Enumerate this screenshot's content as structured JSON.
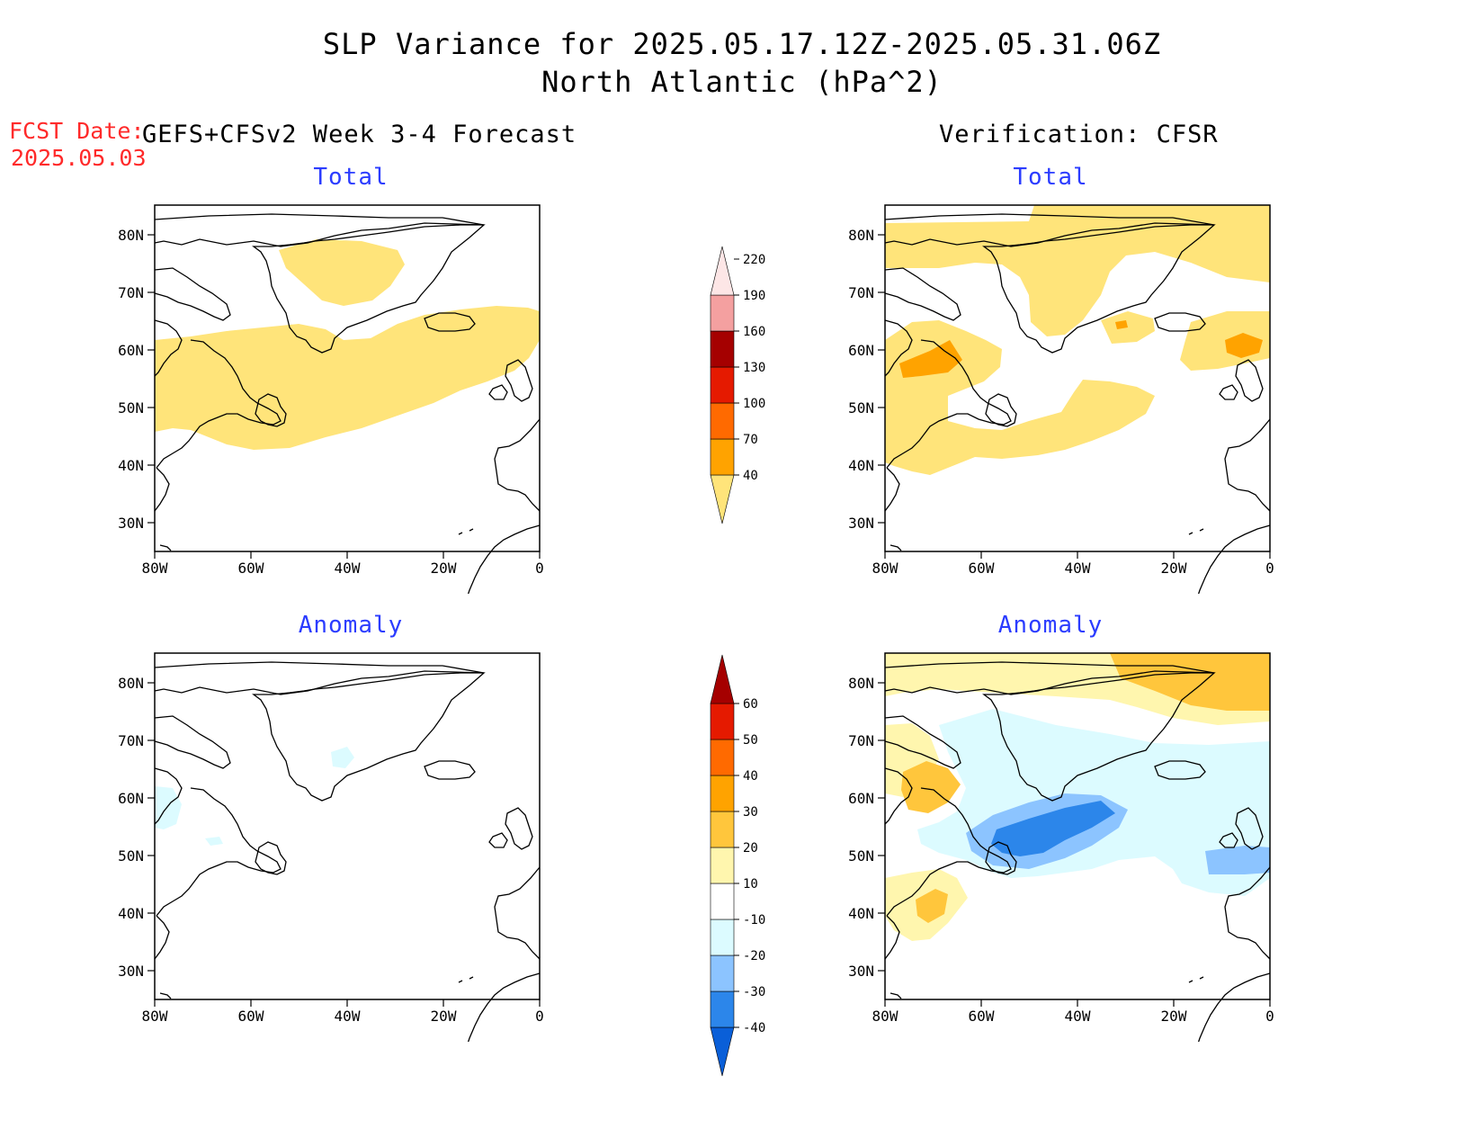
{
  "title": {
    "line1": "SLP Variance for 2025.05.17.12Z-2025.05.31.06Z",
    "line2": "North Atlantic (hPa^2)"
  },
  "fcst": {
    "label": "FCST Date:",
    "date": "2025.05.03"
  },
  "headers": {
    "left": "GEFS+CFSv2 Week 3-4 Forecast",
    "right": "Verification: CFSR"
  },
  "panels": {
    "fc_total": "Total",
    "ver_total": "Total",
    "fc_anom": "Anomaly",
    "ver_anom": "Anomaly"
  },
  "axes": {
    "lat_labels": [
      "80N",
      "70N",
      "60N",
      "50N",
      "40N",
      "30N"
    ],
    "lon_labels": [
      "80W",
      "60W",
      "40W",
      "20W",
      "0"
    ]
  },
  "colorbars": {
    "total": {
      "levels": [
        "40",
        "70",
        "100",
        "130",
        "160",
        "190",
        "220"
      ],
      "colors": [
        "#ffe47a",
        "#ffa300",
        "#ff6a00",
        "#e51a00",
        "#a50000",
        "#f4a0a0",
        "#fde6e6"
      ]
    },
    "anomaly": {
      "levels": [
        "-40",
        "-30",
        "-20",
        "-10",
        "10",
        "20",
        "30",
        "40",
        "50",
        "60"
      ],
      "colors": [
        "#0a5fd8",
        "#2c86ea",
        "#8cc4ff",
        "#dcfbff",
        "#ffffff",
        "#fff6ae",
        "#ffc63c",
        "#ffa300",
        "#ff6a00",
        "#e51a00",
        "#a50000"
      ]
    }
  }
}
